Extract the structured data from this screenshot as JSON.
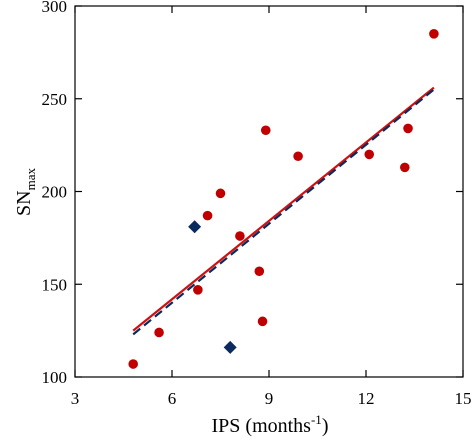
{
  "chart_data": {
    "type": "scatter",
    "xlabel": "IPS (months",
    "xlabel_sup": "-1",
    "xlabel_suffix": ")",
    "ylabel": "SN",
    "ylabel_sub": "max",
    "xlim": [
      3,
      15
    ],
    "ylim": [
      100,
      300
    ],
    "xticks": [
      3,
      6,
      9,
      12,
      15
    ],
    "yticks": [
      100,
      150,
      200,
      250,
      300
    ],
    "grid": false,
    "legend": "none",
    "colors": {
      "circle": "#c00000",
      "diamond": "#0b2a5e",
      "solid_line": "#d01010",
      "dashed_line": "#0b2a5e"
    },
    "series": [
      {
        "marker": "circle",
        "points": [
          {
            "x": 4.8,
            "y": 107
          },
          {
            "x": 5.6,
            "y": 124
          },
          {
            "x": 6.8,
            "y": 147
          },
          {
            "x": 7.1,
            "y": 187
          },
          {
            "x": 7.5,
            "y": 199
          },
          {
            "x": 8.1,
            "y": 176
          },
          {
            "x": 8.7,
            "y": 157
          },
          {
            "x": 8.8,
            "y": 130
          },
          {
            "x": 8.9,
            "y": 233
          },
          {
            "x": 9.9,
            "y": 219
          },
          {
            "x": 12.1,
            "y": 220
          },
          {
            "x": 13.2,
            "y": 213
          },
          {
            "x": 13.3,
            "y": 234
          },
          {
            "x": 14.1,
            "y": 285
          }
        ]
      },
      {
        "marker": "diamond",
        "points": [
          {
            "x": 6.7,
            "y": 181
          },
          {
            "x": 7.8,
            "y": 116
          }
        ]
      }
    ],
    "lines": [
      {
        "style": "solid",
        "x": [
          4.8,
          14.1
        ],
        "y": [
          125,
          256
        ]
      },
      {
        "style": "dashed",
        "x": [
          4.8,
          14.1
        ],
        "y": [
          123,
          255
        ]
      }
    ]
  }
}
